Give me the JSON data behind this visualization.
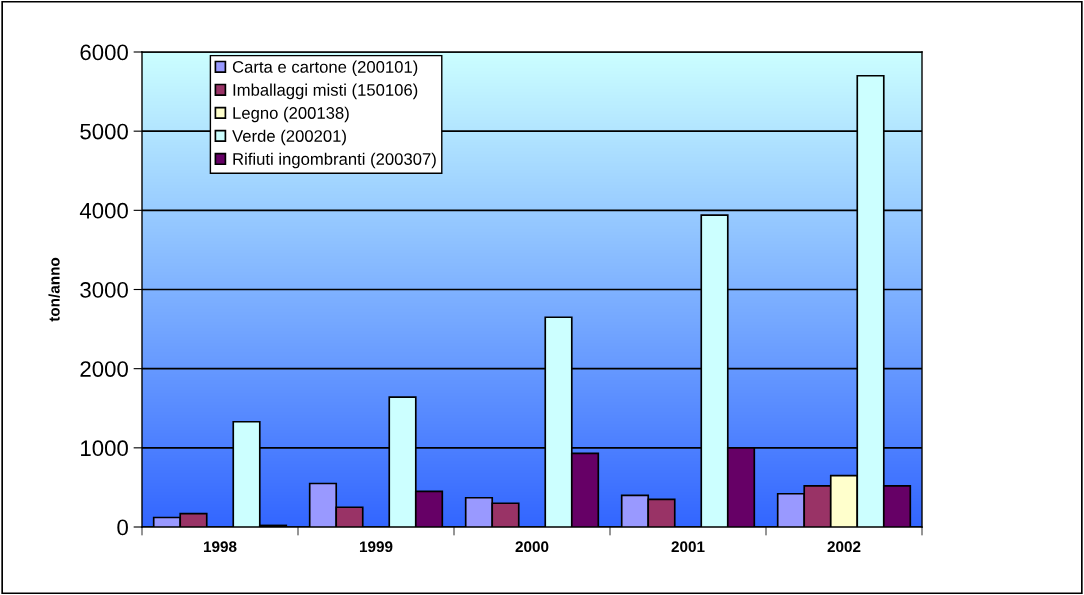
{
  "chart_data": {
    "type": "bar",
    "ylabel": "ton/anno",
    "categories": [
      "1998",
      "1999",
      "2000",
      "2001",
      "2002"
    ],
    "series": [
      {
        "name": "Carta e cartone (200101)",
        "color": "#9999ff",
        "values": [
          120,
          550,
          370,
          400,
          420
        ]
      },
      {
        "name": "Imballaggi misti (150106)",
        "color": "#993366",
        "values": [
          170,
          250,
          300,
          350,
          520
        ]
      },
      {
        "name": "Legno (200138)",
        "color": "#ffffcc",
        "values": [
          null,
          null,
          null,
          null,
          650
        ]
      },
      {
        "name": "Verde (200201)",
        "color": "#ccffff",
        "values": [
          1330,
          1640,
          2650,
          3940,
          5700
        ]
      },
      {
        "name": "Rifiuti ingombranti (200307)",
        "color": "#660066",
        "values": [
          20,
          450,
          930,
          1000,
          520
        ]
      }
    ],
    "ylim": [
      0,
      6000
    ],
    "yticks": [
      0,
      1000,
      2000,
      3000,
      4000,
      5000,
      6000
    ],
    "grid": "y",
    "legend": "top left"
  }
}
